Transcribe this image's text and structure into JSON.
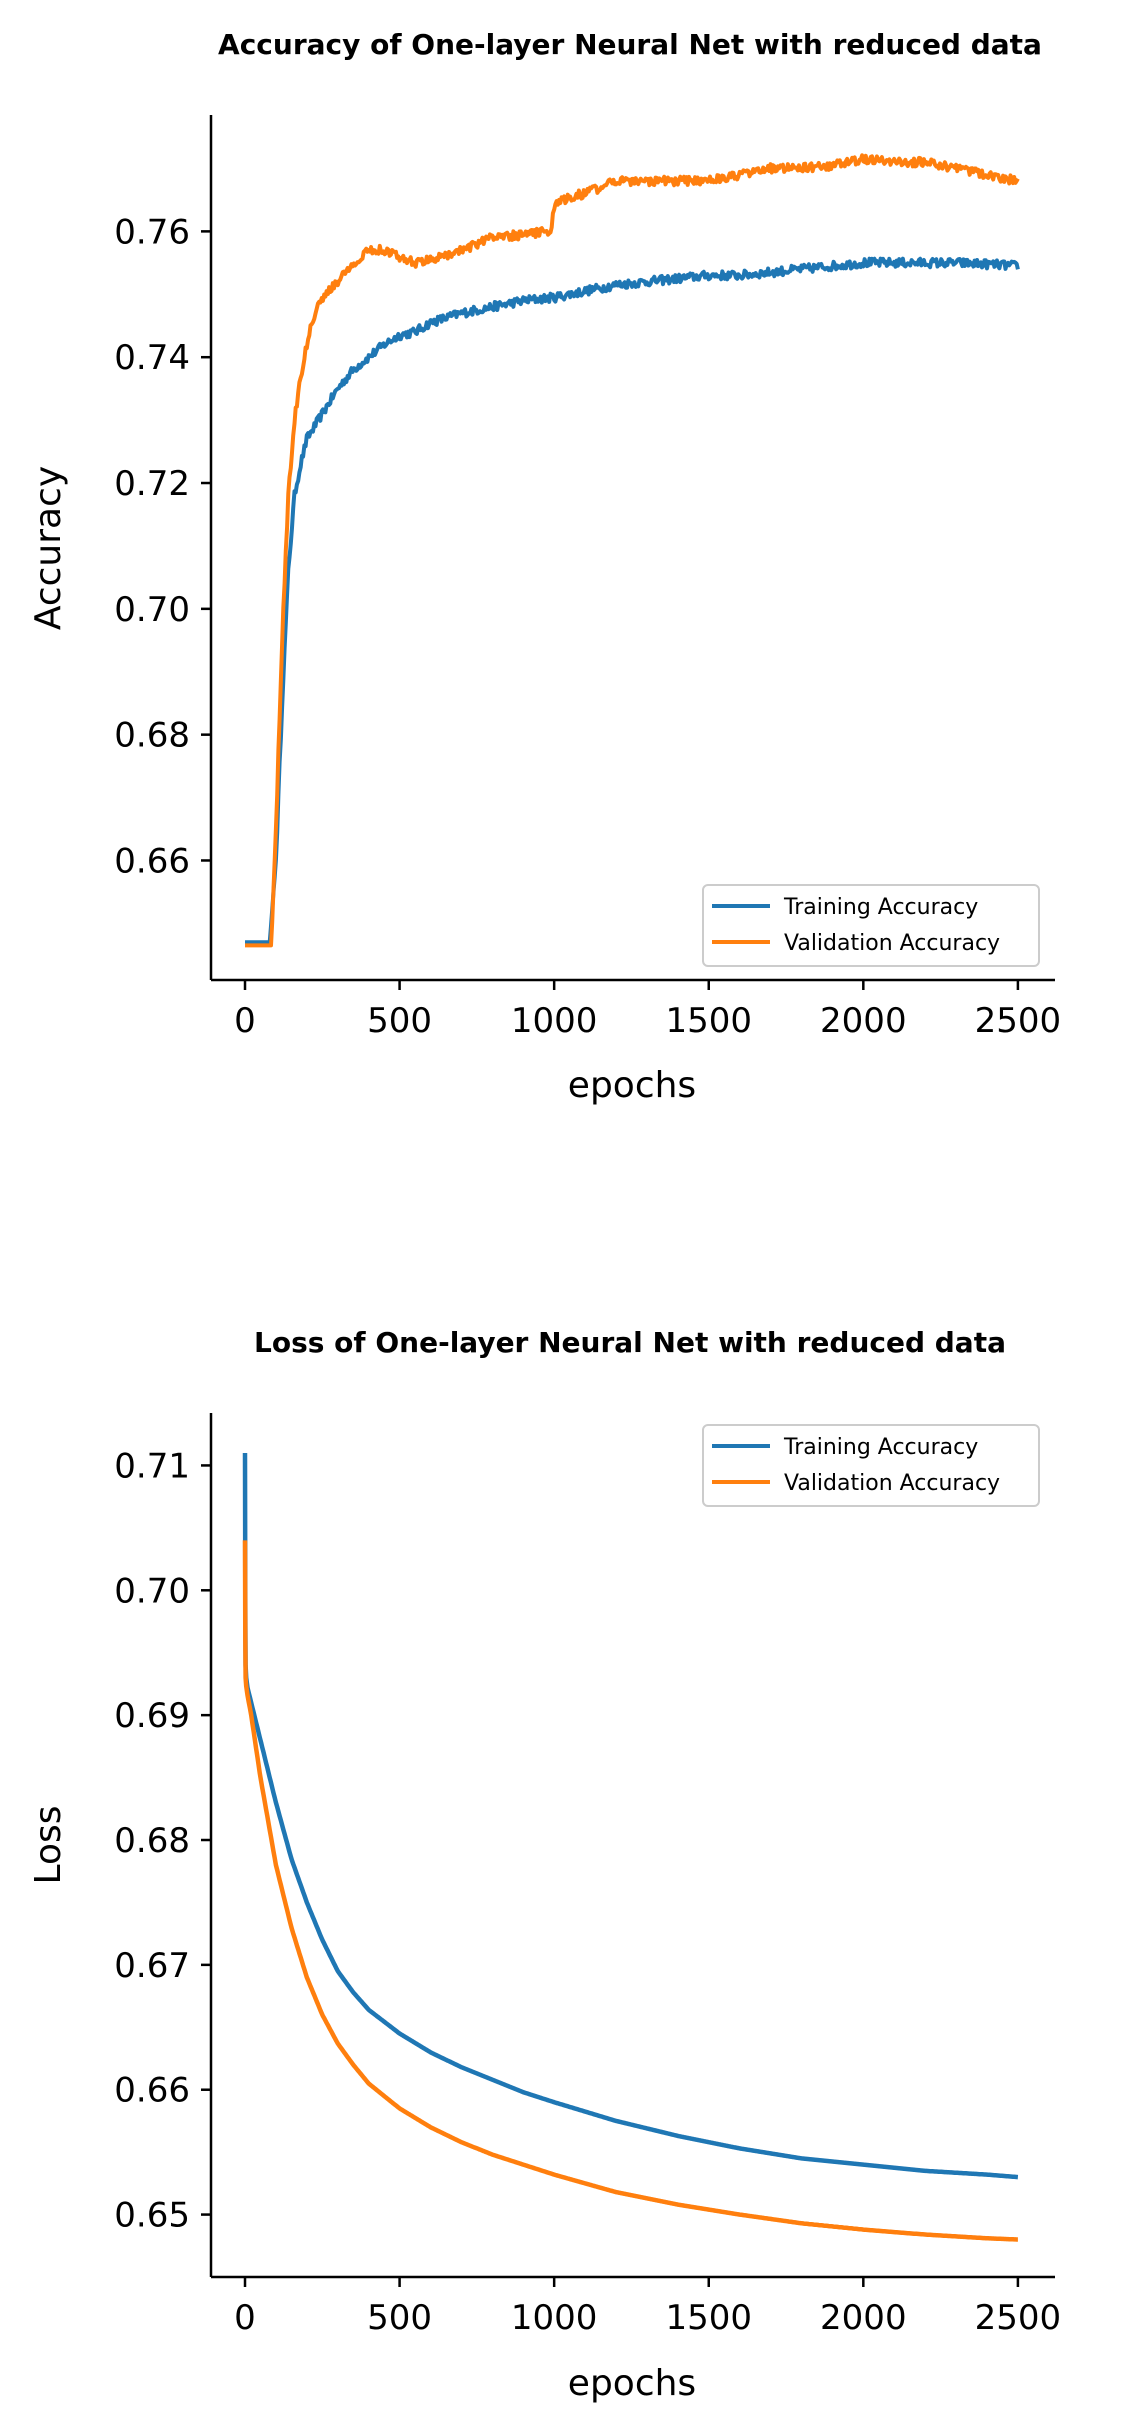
{
  "colors": {
    "training": "#1f77b4",
    "validation": "#ff7f0e",
    "axis": "#000000",
    "legend_border": "#cccccc"
  },
  "chart_data": [
    {
      "type": "line",
      "title": "Accuracy of One-layer Neural Net with reduced data",
      "xlabel": "epochs",
      "ylabel": "Accuracy",
      "xlim": [
        -110,
        2620
      ],
      "ylim": [
        0.641,
        0.7785
      ],
      "xticks": [
        0,
        500,
        1000,
        1500,
        2000,
        2500
      ],
      "xtick_labels": [
        "0",
        "500",
        "1000",
        "1500",
        "2000",
        "2500"
      ],
      "yticks": [
        0.66,
        0.68,
        0.7,
        0.72,
        0.74,
        0.76
      ],
      "ytick_labels": [
        "0.66",
        "0.68",
        "0.70",
        "0.72",
        "0.74",
        "0.76"
      ],
      "grid": false,
      "legend": "lower-right",
      "noise": 0.0007,
      "series": [
        {
          "name": "Training Accuracy",
          "color": "#1f77b4",
          "x": [
            0,
            80,
            100,
            120,
            140,
            160,
            180,
            200,
            250,
            300,
            350,
            400,
            450,
            500,
            550,
            600,
            700,
            800,
            900,
            1000,
            1100,
            1200,
            1300,
            1400,
            1500,
            1600,
            1700,
            1800,
            1900,
            2000,
            2100,
            2200,
            2300,
            2400,
            2500
          ],
          "y": [
            0.647,
            0.647,
            0.66,
            0.685,
            0.706,
            0.718,
            0.723,
            0.727,
            0.731,
            0.735,
            0.738,
            0.74,
            0.742,
            0.7435,
            0.744,
            0.7455,
            0.747,
            0.748,
            0.749,
            0.7495,
            0.7505,
            0.7515,
            0.752,
            0.7525,
            0.753,
            0.753,
            0.7535,
            0.754,
            0.7545,
            0.755,
            0.755,
            0.755,
            0.755,
            0.7548,
            0.7545
          ]
        },
        {
          "name": "Validation Accuracy",
          "color": "#ff7f0e",
          "x": [
            0,
            85,
            100,
            120,
            140,
            160,
            180,
            200,
            230,
            260,
            300,
            350,
            400,
            450,
            500,
            550,
            600,
            700,
            800,
            900,
            990,
            1000,
            1050,
            1100,
            1200,
            1300,
            1400,
            1500,
            1600,
            1700,
            1800,
            1900,
            2000,
            2100,
            2200,
            2300,
            2400,
            2500
          ],
          "y": [
            0.6465,
            0.6465,
            0.665,
            0.695,
            0.718,
            0.73,
            0.737,
            0.742,
            0.748,
            0.75,
            0.752,
            0.755,
            0.757,
            0.757,
            0.756,
            0.755,
            0.7555,
            0.757,
            0.759,
            0.7595,
            0.76,
            0.764,
            0.7655,
            0.766,
            0.768,
            0.768,
            0.768,
            0.768,
            0.769,
            0.77,
            0.77,
            0.7705,
            0.7715,
            0.771,
            0.771,
            0.77,
            0.769,
            0.768
          ]
        }
      ]
    },
    {
      "type": "line",
      "title": "Loss of One-layer Neural Net with reduced data",
      "xlabel": "epochs",
      "ylabel": "Loss",
      "xlim": [
        -110,
        2620
      ],
      "ylim": [
        0.645,
        0.7142
      ],
      "xticks": [
        0,
        500,
        1000,
        1500,
        2000,
        2500
      ],
      "xtick_labels": [
        "0",
        "500",
        "1000",
        "1500",
        "2000",
        "2500"
      ],
      "yticks": [
        0.65,
        0.66,
        0.67,
        0.68,
        0.69,
        0.7,
        0.71
      ],
      "ytick_labels": [
        "0.65",
        "0.66",
        "0.67",
        "0.68",
        "0.69",
        "0.70",
        "0.71"
      ],
      "grid": false,
      "legend": "upper-right",
      "noise": 0,
      "series": [
        {
          "name": "Training Accuracy",
          "color": "#1f77b4",
          "x": [
            0,
            1,
            2,
            5,
            20,
            50,
            100,
            150,
            200,
            250,
            300,
            350,
            400,
            500,
            600,
            700,
            800,
            900,
            1000,
            1200,
            1400,
            1600,
            1800,
            2000,
            2200,
            2400,
            2500
          ],
          "y": [
            0.711,
            0.699,
            0.694,
            0.6925,
            0.691,
            0.688,
            0.683,
            0.6785,
            0.675,
            0.672,
            0.6695,
            0.6678,
            0.6664,
            0.6645,
            0.663,
            0.6618,
            0.6608,
            0.6598,
            0.659,
            0.6575,
            0.6563,
            0.6553,
            0.6545,
            0.654,
            0.6535,
            0.6532,
            0.653
          ]
        },
        {
          "name": "Validation Accuracy",
          "color": "#ff7f0e",
          "x": [
            0,
            1,
            2,
            5,
            20,
            50,
            100,
            150,
            200,
            250,
            300,
            350,
            400,
            500,
            600,
            700,
            800,
            900,
            1000,
            1200,
            1400,
            1600,
            1800,
            2000,
            2200,
            2400,
            2500
          ],
          "y": [
            0.704,
            0.696,
            0.693,
            0.692,
            0.69,
            0.685,
            0.678,
            0.673,
            0.669,
            0.666,
            0.6637,
            0.662,
            0.6605,
            0.6585,
            0.657,
            0.6558,
            0.6548,
            0.654,
            0.6532,
            0.6518,
            0.6508,
            0.65,
            0.6493,
            0.6488,
            0.6484,
            0.6481,
            0.648
          ]
        }
      ]
    }
  ]
}
